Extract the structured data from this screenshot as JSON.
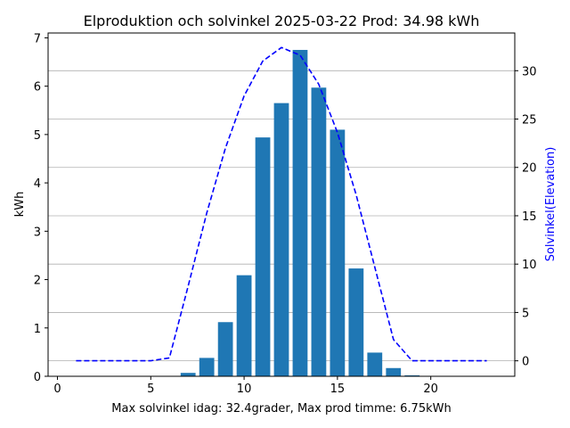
{
  "chart_data": {
    "type": "bar",
    "title": "Elproduktion och solvinkel 2025-03-22 Prod: 34.98 kWh",
    "xlabel": "Max solvinkel idag: 32.4grader, Max prod timme: 6.75kWh",
    "ylabel": "kWh",
    "y2label": "Solvinkel(Elevation)",
    "xlim": [
      -0.5,
      24.5
    ],
    "ylim": [
      0,
      7.1
    ],
    "y2lim": [
      -1.6,
      33.9
    ],
    "x_ticks": [
      0,
      5,
      10,
      15,
      20
    ],
    "y_ticks": [
      0,
      1,
      2,
      3,
      4,
      5,
      6,
      7
    ],
    "y2_ticks": [
      0,
      5,
      10,
      15,
      20,
      25,
      30
    ],
    "grid": "horizontal lines at right-axis ticks",
    "bar_color": "#1f77b4",
    "line_color": "#0000ff",
    "series": [
      {
        "type": "bar",
        "axis": "left",
        "x": [
          7,
          8,
          9,
          10,
          11,
          12,
          13,
          14,
          15,
          16,
          17,
          18,
          19
        ],
        "values": [
          0.07,
          0.38,
          1.12,
          2.09,
          4.94,
          5.65,
          6.75,
          5.97,
          5.1,
          2.23,
          0.49,
          0.17,
          0.02
        ]
      },
      {
        "type": "line",
        "axis": "right",
        "style": "dashed",
        "x": [
          1,
          2,
          3,
          4,
          5,
          6,
          7,
          8,
          9,
          10,
          11,
          12,
          13,
          14,
          15,
          16,
          17,
          18,
          19,
          20,
          21,
          22,
          23
        ],
        "values": [
          0,
          0,
          0,
          0,
          0,
          0.3,
          7.7,
          15.3,
          22.0,
          27.4,
          31.0,
          32.4,
          31.6,
          28.6,
          23.6,
          17.2,
          9.7,
          2.2,
          0,
          0,
          0,
          0,
          0
        ]
      }
    ]
  }
}
